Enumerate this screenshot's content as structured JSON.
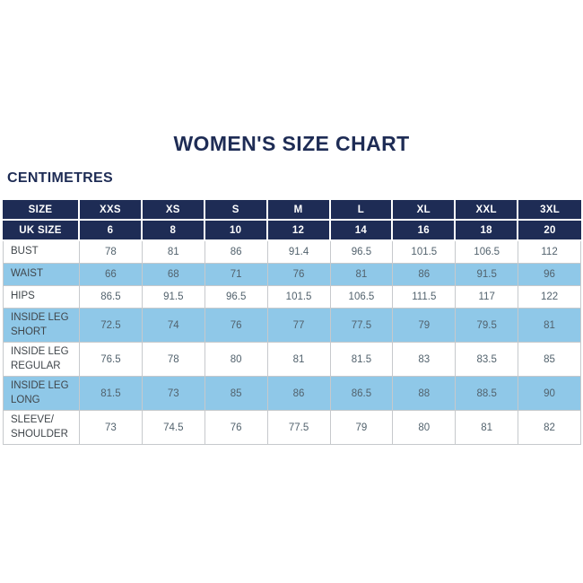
{
  "page": {
    "title": "WOMEN'S SIZE CHART",
    "unit_label": "CENTIMETRES"
  },
  "colors": {
    "navy": "#1e2c55",
    "light_blue": "#8fc8e8",
    "border": "#c6c9cc",
    "label_text": "#40464b",
    "value_text": "#52626d",
    "header_text": "#ffffff"
  },
  "chart_data": {
    "type": "table",
    "title": "WOMEN'S SIZE CHART",
    "unit": "CENTIMETRES",
    "header_rows": [
      {
        "label": "SIZE",
        "values": [
          "XXS",
          "XS",
          "S",
          "M",
          "L",
          "XL",
          "XXL",
          "3XL"
        ]
      },
      {
        "label": "UK SIZE",
        "values": [
          "6",
          "8",
          "10",
          "12",
          "14",
          "16",
          "18",
          "20"
        ]
      }
    ],
    "rows": [
      {
        "label": "BUST",
        "values": [
          "78",
          "81",
          "86",
          "91.4",
          "96.5",
          "101.5",
          "106.5",
          "112"
        ],
        "highlight": false
      },
      {
        "label": "WAIST",
        "values": [
          "66",
          "68",
          "71",
          "76",
          "81",
          "86",
          "91.5",
          "96"
        ],
        "highlight": true
      },
      {
        "label": "HIPS",
        "values": [
          "86.5",
          "91.5",
          "96.5",
          "101.5",
          "106.5",
          "111.5",
          "117",
          "122"
        ],
        "highlight": false
      },
      {
        "label": "INSIDE LEG\nSHORT",
        "values": [
          "72.5",
          "74",
          "76",
          "77",
          "77.5",
          "79",
          "79.5",
          "81"
        ],
        "highlight": true
      },
      {
        "label": "INSIDE LEG\nREGULAR",
        "values": [
          "76.5",
          "78",
          "80",
          "81",
          "81.5",
          "83",
          "83.5",
          "85"
        ],
        "highlight": false
      },
      {
        "label": "INSIDE LEG\nLONG",
        "values": [
          "81.5",
          "73",
          "85",
          "86",
          "86.5",
          "88",
          "88.5",
          "90"
        ],
        "highlight": true
      },
      {
        "label": "SLEEVE/\nSHOULDER",
        "values": [
          "73",
          "74.5",
          "76",
          "77.5",
          "79",
          "80",
          "81",
          "82"
        ],
        "highlight": false
      }
    ]
  }
}
